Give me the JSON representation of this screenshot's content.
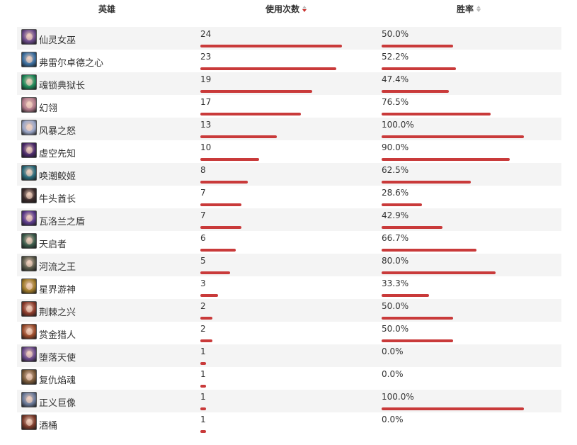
{
  "header": {
    "hero_label": "英雄",
    "usage_label": "使用次数",
    "win_label": "胜率"
  },
  "sort": {
    "usage": "desc",
    "win": "none"
  },
  "accent_color": "#c93a3a",
  "rows": [
    {
      "name": "仙灵女巫",
      "icon": "hero-portrait-icon",
      "color": "#6b4a8a",
      "usage": "24",
      "usage_fraction": 1.0,
      "win": "50.0%",
      "win_fraction": 0.5
    },
    {
      "name": "弗雷尔卓德之心",
      "icon": "hero-portrait-icon",
      "color": "#3b6fa0",
      "usage": "23",
      "usage_fraction": 0.958,
      "win": "52.2%",
      "win_fraction": 0.522
    },
    {
      "name": "魂锁典狱长",
      "icon": "hero-portrait-icon",
      "color": "#1f8a5a",
      "usage": "19",
      "usage_fraction": 0.792,
      "win": "47.4%",
      "win_fraction": 0.474
    },
    {
      "name": "幻翎",
      "icon": "hero-portrait-icon",
      "color": "#b07a8a",
      "usage": "17",
      "usage_fraction": 0.708,
      "win": "76.5%",
      "win_fraction": 0.765
    },
    {
      "name": "风暴之怒",
      "icon": "hero-portrait-icon",
      "color": "#9aa6c8",
      "usage": "13",
      "usage_fraction": 0.542,
      "win": "100.0%",
      "win_fraction": 1.0
    },
    {
      "name": "虚空先知",
      "icon": "hero-portrait-icon",
      "color": "#4a2a6a",
      "usage": "10",
      "usage_fraction": 0.417,
      "win": "90.0%",
      "win_fraction": 0.9
    },
    {
      "name": "唤潮鲛姬",
      "icon": "hero-portrait-icon",
      "color": "#2a6a7a",
      "usage": "8",
      "usage_fraction": 0.333,
      "win": "62.5%",
      "win_fraction": 0.625
    },
    {
      "name": "牛头酋长",
      "icon": "hero-portrait-icon",
      "color": "#3a2a2a",
      "usage": "7",
      "usage_fraction": 0.292,
      "win": "28.6%",
      "win_fraction": 0.286
    },
    {
      "name": "瓦洛兰之盾",
      "icon": "hero-portrait-icon",
      "color": "#5a3a8a",
      "usage": "7",
      "usage_fraction": 0.292,
      "win": "42.9%",
      "win_fraction": 0.429
    },
    {
      "name": "天启者",
      "icon": "hero-portrait-icon",
      "color": "#3a5a4a",
      "usage": "6",
      "usage_fraction": 0.25,
      "win": "66.7%",
      "win_fraction": 0.667
    },
    {
      "name": "河流之王",
      "icon": "hero-portrait-icon",
      "color": "#5a5a4a",
      "usage": "5",
      "usage_fraction": 0.208,
      "win": "80.0%",
      "win_fraction": 0.8
    },
    {
      "name": "星界游神",
      "icon": "hero-portrait-icon",
      "color": "#a07a2a",
      "usage": "3",
      "usage_fraction": 0.125,
      "win": "33.3%",
      "win_fraction": 0.333
    },
    {
      "name": "荆棘之兴",
      "icon": "hero-portrait-icon",
      "color": "#8a3a2a",
      "usage": "2",
      "usage_fraction": 0.083,
      "win": "50.0%",
      "win_fraction": 0.5
    },
    {
      "name": "赏金猎人",
      "icon": "hero-portrait-icon",
      "color": "#9a4a2a",
      "usage": "2",
      "usage_fraction": 0.083,
      "win": "50.0%",
      "win_fraction": 0.5
    },
    {
      "name": "堕落天使",
      "icon": "hero-portrait-icon",
      "color": "#6a4a8a",
      "usage": "1",
      "usage_fraction": 0.042,
      "win": "0.0%",
      "win_fraction": 0.0
    },
    {
      "name": "复仇焰魂",
      "icon": "hero-portrait-icon",
      "color": "#7a5a3a",
      "usage": "1",
      "usage_fraction": 0.042,
      "win": "0.0%",
      "win_fraction": 0.0
    },
    {
      "name": "正义巨像",
      "icon": "hero-portrait-icon",
      "color": "#6a7a9a",
      "usage": "1",
      "usage_fraction": 0.042,
      "win": "100.0%",
      "win_fraction": 1.0
    },
    {
      "name": "酒桶",
      "icon": "hero-portrait-icon",
      "color": "#7a3a2a",
      "usage": "1",
      "usage_fraction": 0.042,
      "win": "0.0%",
      "win_fraction": 0.0
    }
  ]
}
